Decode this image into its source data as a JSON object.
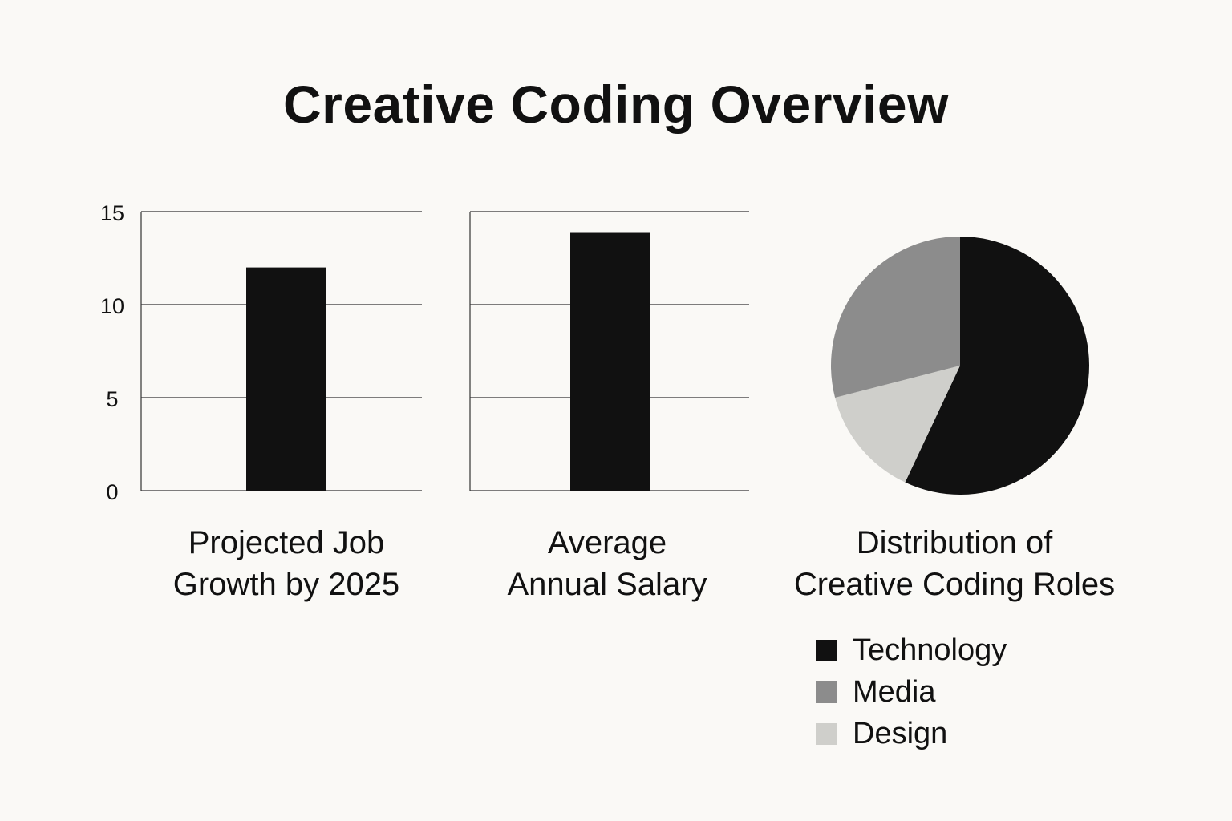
{
  "page": {
    "title": "Creative Coding Overview"
  },
  "colors": {
    "background": "#faf9f6",
    "ink": "#111111",
    "grid": "#333333"
  },
  "chart_data": [
    {
      "type": "bar",
      "caption": [
        "Projected Job",
        "Growth by 2025"
      ],
      "categories": [
        ""
      ],
      "values": [
        12
      ],
      "ylim": [
        0,
        15
      ],
      "yticks": [
        "0",
        "5",
        "10",
        "15"
      ],
      "ytick_values": [
        0,
        5,
        10,
        15
      ],
      "grid": true,
      "color": "#111111"
    },
    {
      "type": "bar",
      "caption": [
        "Average",
        "Annual Salary"
      ],
      "categories": [
        ""
      ],
      "values": [
        13.9
      ],
      "ylim": [
        0,
        15
      ],
      "ytick_values": [
        0,
        5,
        10,
        15
      ],
      "grid": true,
      "color": "#111111"
    },
    {
      "type": "pie",
      "caption": [
        "Distribution of",
        "Creative Coding Roles"
      ],
      "slices": [
        {
          "label": "Technology",
          "value": 57,
          "color": "#111111"
        },
        {
          "label": "Design",
          "value": 14,
          "color": "#cfcfcb"
        },
        {
          "label": "Media",
          "value": 29,
          "color": "#8c8c8c"
        }
      ],
      "legend": [
        "Technology",
        "Media",
        "Design"
      ],
      "legend_placement": "bottom",
      "legend_colors": [
        "#111111",
        "#8c8c8c",
        "#cfcfcb"
      ]
    }
  ]
}
